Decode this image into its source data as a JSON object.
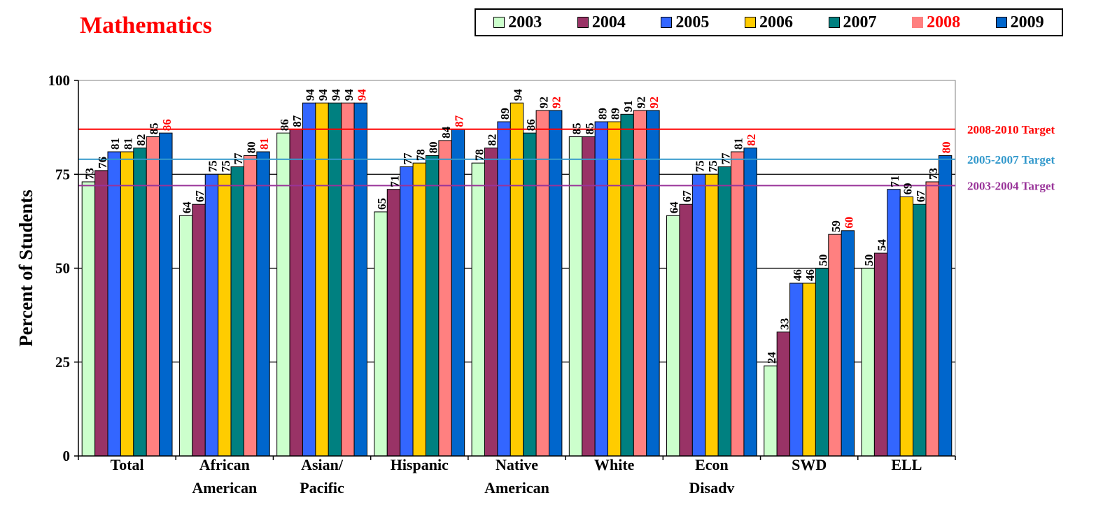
{
  "title": "Mathematics",
  "chart_data": {
    "type": "bar",
    "title": "Mathematics",
    "ylabel": "Percent of Students",
    "xlabel": "",
    "ylim": [
      0,
      100
    ],
    "yticks": [
      "0",
      "25",
      "50",
      "75",
      "100"
    ],
    "categories": [
      [
        "Total"
      ],
      [
        "African",
        "American"
      ],
      [
        "Asian/",
        "Pacific"
      ],
      [
        "Hispanic"
      ],
      [
        "Native",
        "American"
      ],
      [
        "White"
      ],
      [
        "Econ",
        "Disadv"
      ],
      [
        "SWD"
      ],
      [
        "ELL"
      ]
    ],
    "series": [
      {
        "name": "2003",
        "color": "#ccffcc",
        "label_color": "#000000",
        "values": [
          73,
          64,
          86,
          65,
          78,
          85,
          64,
          24,
          50
        ]
      },
      {
        "name": "2004",
        "color": "#993366",
        "label_color": "#000000",
        "values": [
          76,
          67,
          87,
          71,
          82,
          85,
          67,
          33,
          54
        ]
      },
      {
        "name": "2005",
        "color": "#3366ff",
        "label_color": "#000000",
        "values": [
          81,
          75,
          94,
          77,
          89,
          89,
          75,
          46,
          71
        ]
      },
      {
        "name": "2006",
        "color": "#ffcc00",
        "label_color": "#000000",
        "values": [
          81,
          75,
          94,
          78,
          94,
          89,
          75,
          46,
          69
        ]
      },
      {
        "name": "2007",
        "color": "#008080",
        "label_color": "#000000",
        "values": [
          82,
          77,
          94,
          80,
          86,
          91,
          77,
          50,
          67
        ]
      },
      {
        "name": "2008",
        "color": "#ff8080",
        "label_color": "#000000",
        "values": [
          85,
          80,
          94,
          84,
          92,
          92,
          81,
          59,
          73
        ]
      },
      {
        "name": "2009",
        "color": "#0066cc",
        "label_color": "#ff0000",
        "values": [
          86,
          81,
          94,
          87,
          92,
          92,
          82,
          60,
          80
        ]
      }
    ],
    "legend_position": "top-right",
    "legend_label_colors": {
      "2008": "#ff0000"
    },
    "grid": true,
    "targets": [
      {
        "label": "2008-2010 Target",
        "value": 87,
        "color": "#ff0000"
      },
      {
        "label": "2005-2007 Target",
        "value": 79,
        "color": "#3399cc"
      },
      {
        "label": "2003-2004 Target",
        "value": 72,
        "color": "#993399"
      }
    ]
  }
}
